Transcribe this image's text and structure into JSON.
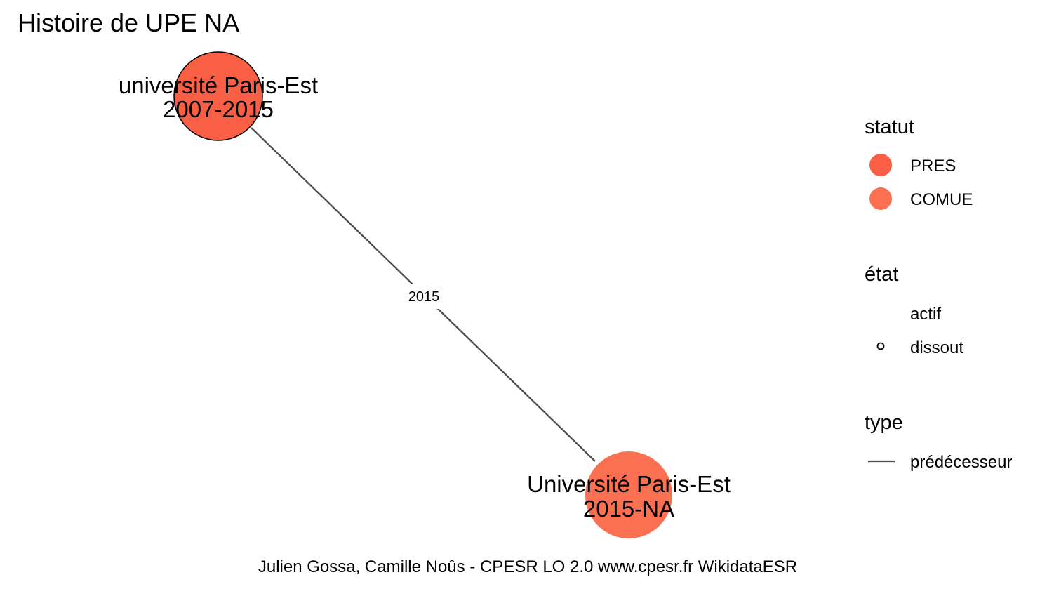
{
  "title": "Histoire de UPE NA",
  "caption": "Julien Gossa, Camille Noûs - CPESR LO 2.0 www.cpesr.fr WikidataESR",
  "nodes": [
    {
      "name": "université Paris-Est",
      "period": "2007-2015",
      "statut": "PRES",
      "etat": "dissout"
    },
    {
      "name": "Université Paris-Est",
      "period": "2015-NA",
      "statut": "COMUE",
      "etat": "actif"
    }
  ],
  "edges": [
    {
      "from": 0,
      "to": 1,
      "label": "2015",
      "type": "prédécesseur"
    }
  ],
  "legend": {
    "statut": {
      "title": "statut",
      "items": [
        {
          "label": "PRES",
          "color": "#f95f45"
        },
        {
          "label": "COMUE",
          "color": "#fc7052"
        }
      ]
    },
    "etat": {
      "title": "état",
      "items": [
        {
          "label": "actif",
          "symbol": "none"
        },
        {
          "label": "dissout",
          "symbol": "open-circle"
        }
      ]
    },
    "type": {
      "title": "type",
      "items": [
        {
          "label": "prédécesseur",
          "symbol": "line",
          "color": "#4d4d4d"
        }
      ]
    }
  }
}
